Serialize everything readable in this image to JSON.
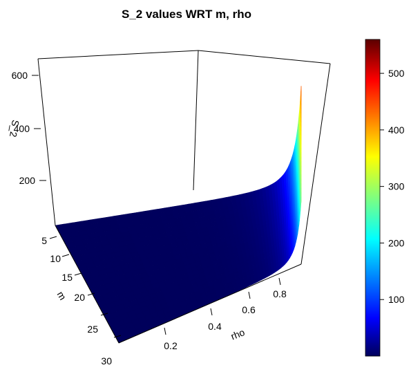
{
  "chart_data": {
    "type": "surface3d",
    "title": "S_2 values WRT m, rho",
    "xlabel": "rho",
    "ylabel": "m",
    "zlabel": "S_2",
    "x_ticks": [
      "0.2",
      "0.4",
      "0.6",
      "0.8"
    ],
    "y_ticks": [
      "5",
      "10",
      "15",
      "20",
      "25",
      "30"
    ],
    "z_ticks": [
      "200",
      "400",
      "600"
    ],
    "x_range": [
      0.0,
      0.95
    ],
    "y_range": [
      5,
      30
    ],
    "z_range": [
      0,
      560
    ],
    "surface_samples": {
      "rho": [
        0.05,
        0.3,
        0.5,
        0.7,
        0.8,
        0.85,
        0.9,
        0.95
      ],
      "at_m_5": [
        2,
        3,
        6,
        18,
        40,
        80,
        170,
        560
      ],
      "at_m_30": [
        0,
        1,
        2,
        5,
        10,
        20,
        40,
        100
      ]
    },
    "colorbar": {
      "ticks": [
        "100",
        "200",
        "300",
        "400",
        "500"
      ],
      "range": [
        0,
        560
      ],
      "palette": "jet"
    },
    "grid": false,
    "box": true
  }
}
